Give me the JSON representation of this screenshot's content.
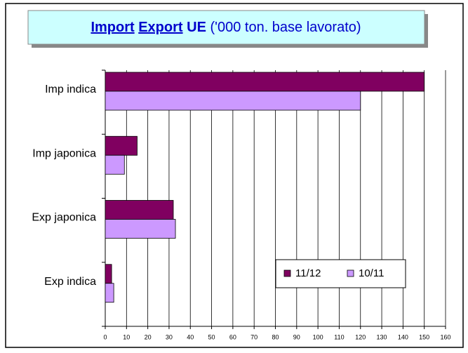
{
  "chart_data": {
    "type": "barh",
    "title_parts": [
      "Import",
      "Export",
      "UE",
      "('000 ton. base lavorato)"
    ],
    "categories": [
      "Imp indica",
      "Imp japonica",
      "Exp japonica",
      "Exp indica"
    ],
    "series": [
      {
        "name": "11/12",
        "color": "#800060",
        "values": [
          150,
          15,
          32,
          3
        ]
      },
      {
        "name": "10/11",
        "color": "#cc99ff",
        "values": [
          120,
          9,
          33,
          4
        ]
      }
    ],
    "xlim": [
      0,
      160
    ],
    "xticks": [
      0,
      10,
      20,
      30,
      40,
      50,
      60,
      70,
      80,
      90,
      100,
      110,
      120,
      130,
      140,
      150,
      160
    ],
    "grid": true,
    "legend": "lower right"
  }
}
